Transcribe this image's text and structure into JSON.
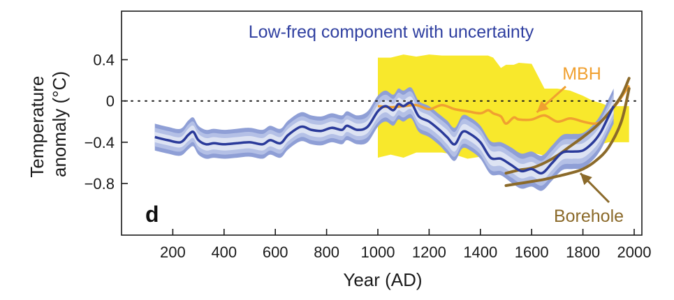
{
  "chart_data": {
    "type": "line",
    "title": "Low-freq component with uncertainty",
    "panel_label": "d",
    "xlabel": "Year (AD)",
    "ylabel_lines": [
      "Temperature",
      "anomaly (°C)"
    ],
    "xlim": [
      0,
      2030
    ],
    "ylim": [
      -1.3,
      0.87
    ],
    "xticks": [
      200,
      400,
      600,
      800,
      1000,
      1200,
      1400,
      1600,
      1800,
      2000
    ],
    "yticks": [
      0.4,
      0,
      -0.4,
      -0.8
    ],
    "ytick_labels": [
      "0.4",
      "0",
      "−0.4",
      "−0.8"
    ],
    "zero_line": "dotted",
    "colors": {
      "series": "#2a3a9a",
      "inner_band": "#dde3f3",
      "mid_band": "#b4c0e6",
      "outer_band": "#8f9fd6",
      "mbh": "#f0a030",
      "mbh_band": "#f8e82c",
      "borehole": "#8b6a2a",
      "title": "#2f3fa0",
      "axis": "#1a1a1a"
    },
    "series": [
      {
        "name": "Low-freq component",
        "x": [
          130,
          180,
          230,
          260,
          280,
          300,
          330,
          360,
          400,
          450,
          500,
          550,
          580,
          620,
          650,
          700,
          740,
          780,
          820,
          860,
          880,
          920,
          960,
          1000,
          1030,
          1060,
          1080,
          1100,
          1130,
          1160,
          1200,
          1240,
          1270,
          1300,
          1330,
          1360,
          1400,
          1440,
          1480,
          1520,
          1560,
          1600,
          1640,
          1680,
          1720,
          1760,
          1800,
          1840,
          1870,
          1900,
          1920
        ],
        "y": [
          -0.35,
          -0.38,
          -0.4,
          -0.33,
          -0.3,
          -0.38,
          -0.42,
          -0.41,
          -0.42,
          -0.41,
          -0.4,
          -0.42,
          -0.38,
          -0.41,
          -0.33,
          -0.25,
          -0.28,
          -0.29,
          -0.26,
          -0.28,
          -0.24,
          -0.28,
          -0.25,
          -0.1,
          -0.05,
          -0.09,
          -0.03,
          -0.05,
          -0.02,
          -0.15,
          -0.2,
          -0.28,
          -0.35,
          -0.42,
          -0.3,
          -0.32,
          -0.4,
          -0.55,
          -0.56,
          -0.62,
          -0.68,
          -0.66,
          -0.7,
          -0.6,
          -0.5,
          -0.49,
          -0.48,
          -0.4,
          -0.3,
          -0.15,
          -0.05
        ],
        "band_inner_halfwidth": [
          0.05,
          0.05,
          0.05,
          0.06,
          0.06,
          0.06,
          0.06,
          0.06,
          0.06,
          0.06,
          0.06,
          0.06,
          0.06,
          0.06,
          0.06,
          0.06,
          0.06,
          0.06,
          0.06,
          0.06,
          0.06,
          0.06,
          0.06,
          0.06,
          0.06,
          0.06,
          0.06,
          0.06,
          0.06,
          0.06,
          0.06,
          0.06,
          0.07,
          0.07,
          0.07,
          0.07,
          0.07,
          0.07,
          0.07,
          0.07,
          0.07,
          0.07,
          0.07,
          0.07,
          0.07,
          0.07,
          0.07,
          0.07,
          0.07,
          0.07,
          0.07
        ],
        "band_mid_halfwidth": [
          0.09,
          0.09,
          0.09,
          0.1,
          0.1,
          0.1,
          0.1,
          0.1,
          0.1,
          0.1,
          0.1,
          0.1,
          0.1,
          0.1,
          0.1,
          0.1,
          0.1,
          0.1,
          0.1,
          0.1,
          0.1,
          0.1,
          0.1,
          0.11,
          0.11,
          0.11,
          0.11,
          0.11,
          0.11,
          0.11,
          0.11,
          0.11,
          0.12,
          0.12,
          0.12,
          0.12,
          0.12,
          0.12,
          0.12,
          0.12,
          0.12,
          0.12,
          0.12,
          0.12,
          0.12,
          0.12,
          0.12,
          0.12,
          0.12,
          0.12,
          0.12
        ],
        "band_outer_halfwidth": [
          0.13,
          0.13,
          0.13,
          0.14,
          0.14,
          0.14,
          0.14,
          0.14,
          0.14,
          0.14,
          0.14,
          0.14,
          0.14,
          0.14,
          0.14,
          0.14,
          0.14,
          0.14,
          0.14,
          0.14,
          0.14,
          0.14,
          0.15,
          0.15,
          0.15,
          0.15,
          0.15,
          0.15,
          0.15,
          0.15,
          0.15,
          0.15,
          0.16,
          0.16,
          0.16,
          0.16,
          0.16,
          0.16,
          0.16,
          0.17,
          0.17,
          0.17,
          0.17,
          0.17,
          0.17,
          0.17,
          0.17,
          0.17,
          0.17,
          0.17,
          0.17
        ]
      },
      {
        "name": "MBH",
        "x": [
          1000,
          1050,
          1100,
          1150,
          1200,
          1250,
          1300,
          1350,
          1400,
          1430,
          1450,
          1480,
          1500,
          1530,
          1550,
          1600,
          1650,
          1700,
          1750,
          1800,
          1840,
          1870,
          1900,
          1940,
          1980
        ],
        "y": [
          -0.05,
          -0.06,
          -0.05,
          -0.04,
          -0.08,
          -0.04,
          -0.08,
          -0.1,
          -0.12,
          -0.09,
          -0.12,
          -0.15,
          -0.22,
          -0.16,
          -0.18,
          -0.18,
          -0.14,
          -0.2,
          -0.17,
          -0.2,
          -0.22,
          -0.2,
          -0.12,
          0.0,
          0.15
        ],
        "band_upper": [
          0.42,
          0.42,
          0.45,
          0.43,
          0.45,
          0.44,
          0.44,
          0.44,
          0.44,
          0.44,
          0.42,
          0.32,
          0.35,
          0.35,
          0.37,
          0.36,
          0.12,
          0.12,
          0.1,
          0.05,
          0.0,
          -0.02,
          -0.05,
          -0.05,
          -0.05
        ],
        "band_lower": [
          -0.55,
          -0.52,
          -0.55,
          -0.5,
          -0.5,
          -0.5,
          -0.52,
          -0.56,
          -0.54,
          -0.56,
          -0.62,
          -0.68,
          -0.66,
          -0.56,
          -0.52,
          -0.5,
          -0.53,
          -0.5,
          -0.48,
          -0.48,
          -0.45,
          -0.42,
          -0.4,
          -0.4,
          -0.4
        ]
      },
      {
        "name": "Borehole",
        "lines": [
          {
            "x": [
              1500,
              1550,
              1600,
              1650,
              1700,
              1750,
              1800,
              1850,
              1900,
              1950,
              1980
            ],
            "y": [
              -0.7,
              -0.67,
              -0.65,
              -0.6,
              -0.53,
              -0.44,
              -0.35,
              -0.25,
              -0.12,
              0.05,
              0.22
            ]
          },
          {
            "x": [
              1500,
              1550,
              1600,
              1650,
              1700,
              1750,
              1800,
              1850,
              1900,
              1950,
              1980
            ],
            "y": [
              -0.82,
              -0.8,
              -0.78,
              -0.76,
              -0.73,
              -0.7,
              -0.66,
              -0.58,
              -0.45,
              -0.2,
              0.12
            ]
          }
        ]
      }
    ],
    "annotations": [
      {
        "text": "MBH",
        "anchor": "upper-right",
        "arrow_to": {
          "x": 1620,
          "y": -0.11
        }
      },
      {
        "text": "Borehole",
        "anchor": "lower-right",
        "arrow_to": {
          "x": 1790,
          "y": -0.7
        }
      }
    ]
  }
}
